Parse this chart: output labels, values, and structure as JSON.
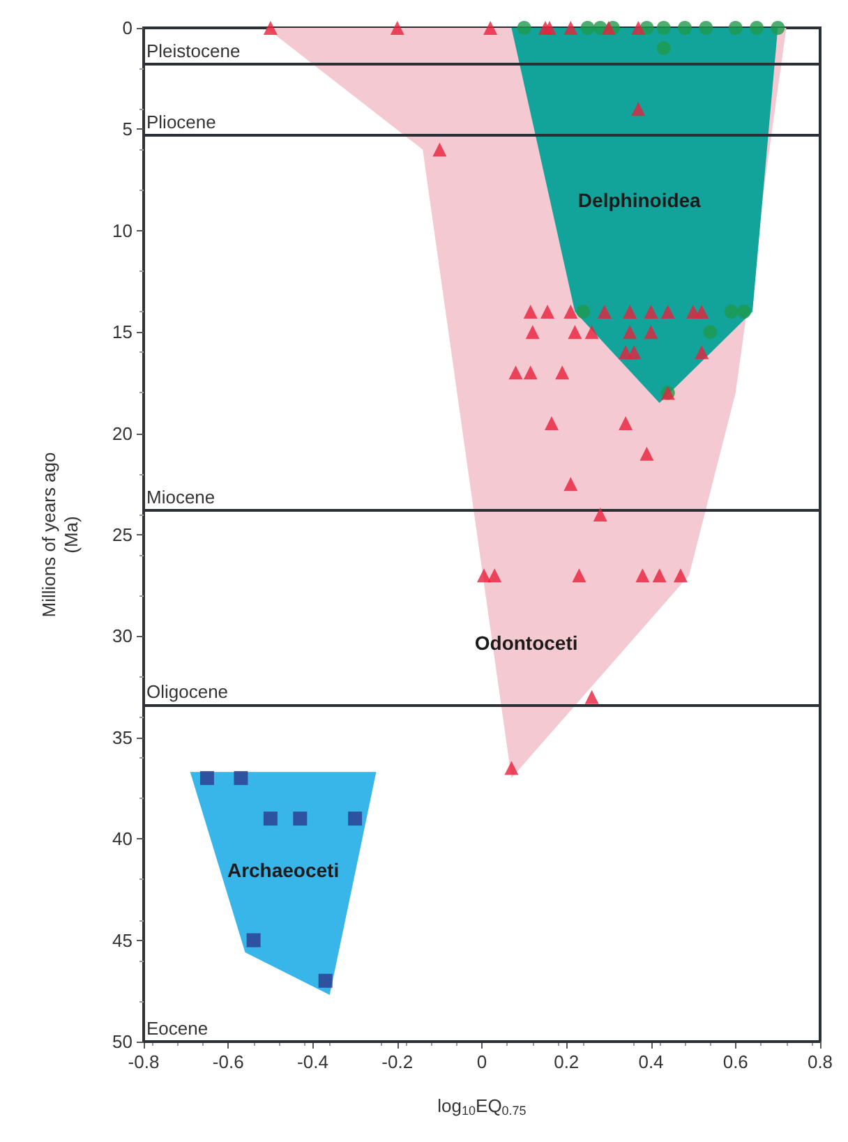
{
  "chart_data": {
    "type": "scatter",
    "xlabel": "log$_{10}$EQ$_{0.75}$",
    "ylabel": "Millions of years ago\n(Ma)",
    "xlim": [
      -0.8,
      0.8
    ],
    "xticks": [
      -0.8,
      -0.6,
      -0.4,
      -0.2,
      0,
      0.2,
      0.4,
      0.6,
      0.8
    ],
    "ylim": [
      50,
      0
    ],
    "yticks": [
      0,
      5,
      10,
      15,
      20,
      25,
      30,
      35,
      40,
      45,
      50
    ],
    "grid": false,
    "series": [
      {
        "type": "area",
        "name": "Odontoceti",
        "color": "#f5c9d1",
        "x": [
          -0.51,
          0.72,
          0.6,
          0.49,
          0.07,
          -0.14
        ],
        "values": [
          0,
          0,
          18,
          27,
          37,
          6
        ]
      },
      {
        "type": "area",
        "name": "Delphinoidea",
        "color": "#12a49a",
        "x": [
          0.07,
          0.7,
          0.64,
          0.42,
          0.22
        ],
        "values": [
          0,
          0,
          14,
          18.5,
          14
        ]
      },
      {
        "type": "area",
        "name": "Archaeoceti",
        "color": "#38b6ea",
        "x": [
          -0.69,
          -0.25,
          -0.36,
          -0.56
        ],
        "values": [
          36.7,
          36.7,
          47.7,
          45.6
        ]
      },
      {
        "marker": "triangle",
        "color": "#e8203c",
        "x": [
          -0.5,
          -0.2,
          0.02,
          0.15,
          0.16,
          0.21,
          0.3,
          0.37,
          0.37,
          -0.1,
          0.115,
          0.155,
          0.21,
          0.29,
          0.35,
          0.4,
          0.44,
          0.5,
          0.52,
          0.12,
          0.22,
          0.26,
          0.35,
          0.4,
          0.34,
          0.36,
          0.52,
          0.08,
          0.115,
          0.19,
          0.44,
          0.165,
          0.34,
          0.39,
          0.21,
          0.28,
          0.005,
          0.03,
          0.23,
          0.38,
          0.42,
          0.47,
          0.26,
          0.07
        ],
        "values": [
          0,
          0,
          0,
          0,
          0,
          0,
          0,
          0,
          4,
          6,
          14,
          14,
          14,
          14,
          14,
          14,
          14,
          14,
          14,
          15,
          15,
          15,
          15,
          15,
          16,
          16,
          16,
          17,
          17,
          17,
          18,
          19.5,
          19.5,
          21,
          22.5,
          24,
          27,
          27,
          27,
          27,
          27,
          27,
          33,
          36.5
        ]
      },
      {
        "marker": "circle",
        "color": "#1f9a4c",
        "x": [
          0.1,
          0.25,
          0.28,
          0.31,
          0.39,
          0.43,
          0.48,
          0.53,
          0.6,
          0.65,
          0.7,
          0.43,
          0.24,
          0.59,
          0.62,
          0.54,
          0.44
        ],
        "values": [
          0,
          0,
          0,
          0,
          0,
          0,
          0,
          0,
          0,
          0,
          0,
          1,
          14,
          14,
          14,
          15,
          18
        ]
      },
      {
        "marker": "square",
        "color": "#2b3a8c",
        "x": [
          -0.65,
          -0.57,
          -0.5,
          -0.43,
          -0.3,
          -0.54,
          -0.37
        ],
        "values": [
          37,
          37,
          39,
          39,
          39,
          45,
          47
        ]
      }
    ],
    "ref_lines": [
      {
        "axis": "y",
        "value": 1.8,
        "label": "Pleistocene"
      },
      {
        "axis": "y",
        "value": 5.3,
        "label": "Pliocene"
      },
      {
        "axis": "y",
        "value": 23.8,
        "label": "Miocene"
      },
      {
        "axis": "y",
        "value": 33.4,
        "label": "Oligocene"
      },
      {
        "axis": "y",
        "value": 50,
        "label": "Eocene"
      }
    ]
  }
}
